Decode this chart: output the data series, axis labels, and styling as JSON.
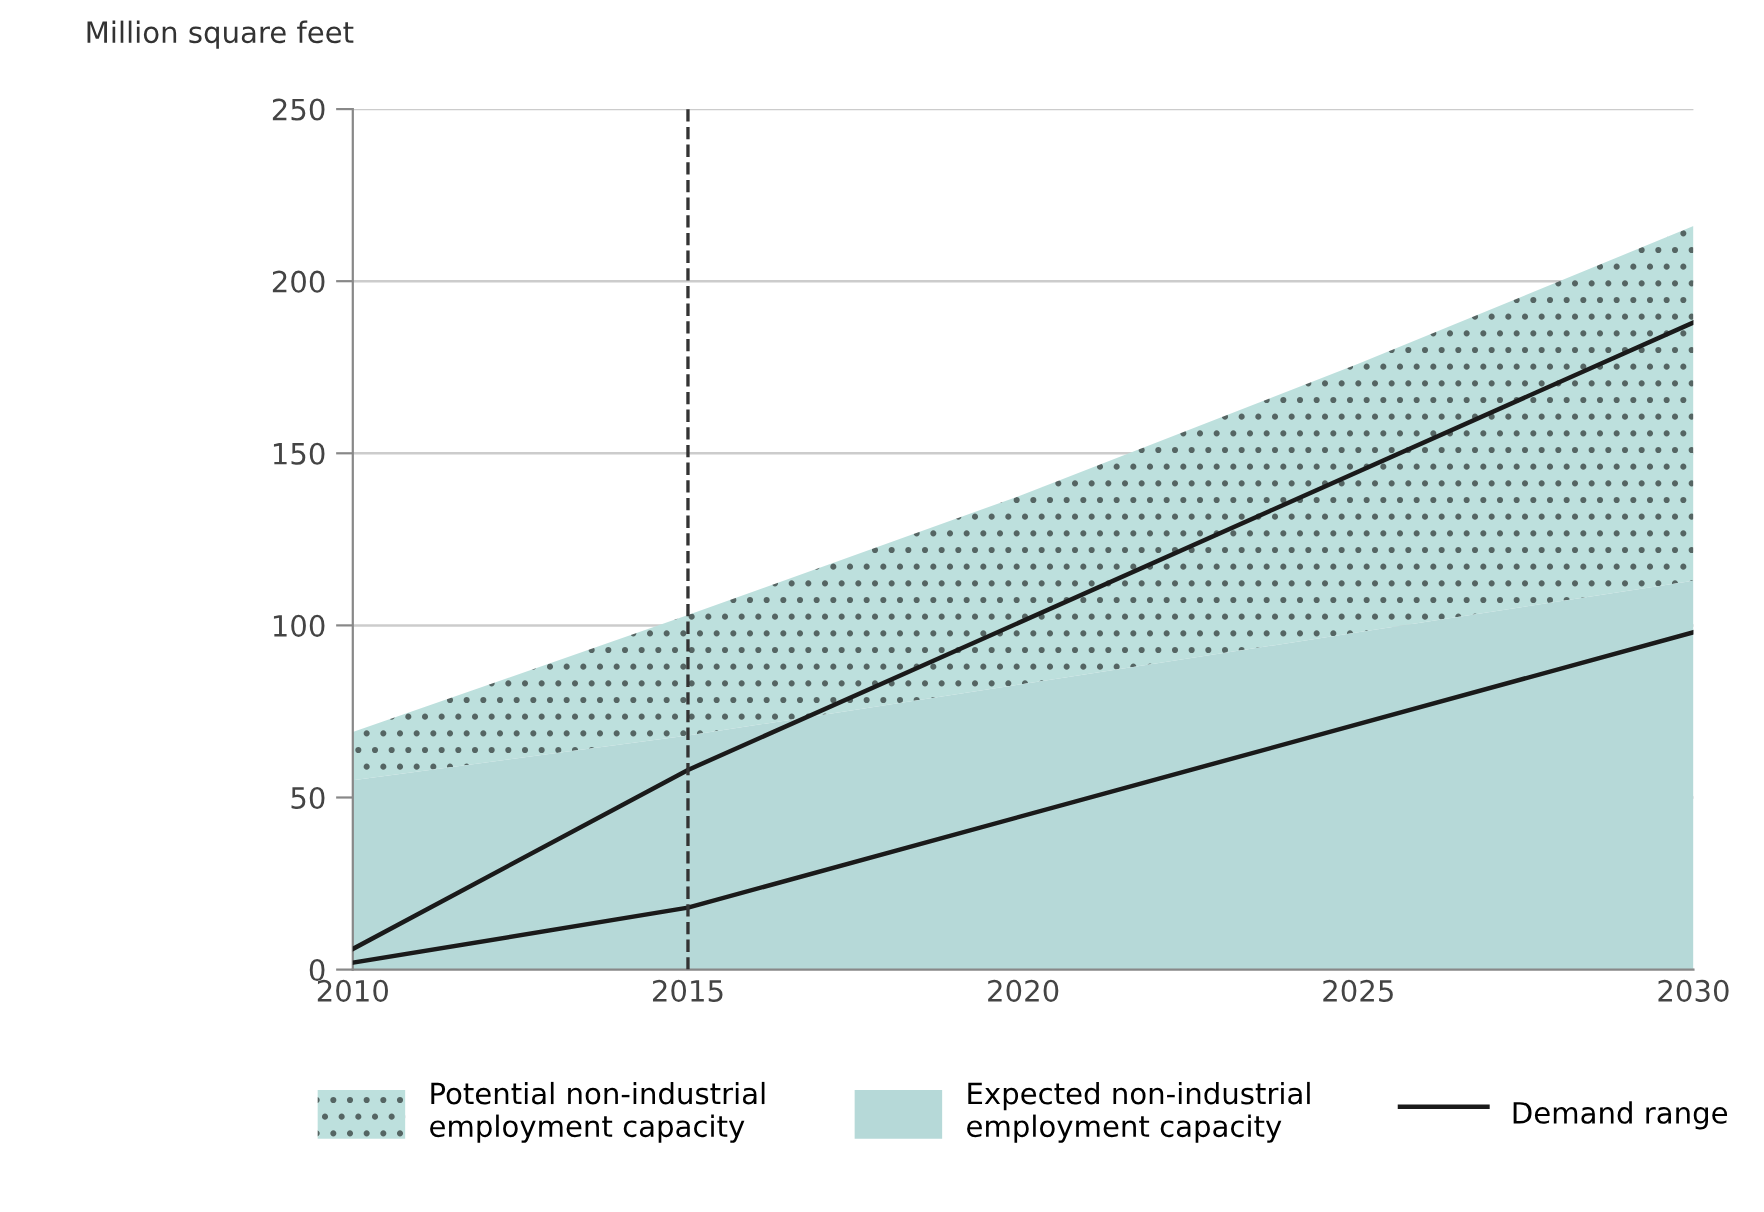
{
  "chart_data": {
    "type": "area",
    "ylabel": "Million square feet",
    "stacked": true,
    "x": [
      2010,
      2015,
      2020,
      2025,
      2030
    ],
    "series": [
      {
        "name": "Expected non-industrial employment capacity",
        "color": "#b6d9d8",
        "values": [
          55,
          68,
          83,
          98,
          113
        ]
      },
      {
        "name": "Potential non-industrial employment capacity",
        "color": "#bde0dd",
        "values": [
          14,
          35,
          55,
          78,
          103
        ]
      },
      {
        "name": "Demand range",
        "type": "line",
        "color": "#1a1a1a",
        "x": [
          2010,
          2015,
          2030
        ],
        "values": [
          6,
          58,
          188
        ]
      },
      {
        "type": "line",
        "color": "#1a1a1a",
        "x": [
          2010,
          2015,
          2030
        ],
        "values": [
          2,
          18,
          98
        ]
      }
    ],
    "xlim": [
      2010,
      2030
    ],
    "xticks": [
      2010,
      2015,
      2020,
      2025,
      2030
    ],
    "ylim": [
      0,
      250
    ],
    "yticks": [
      0,
      50,
      100,
      150,
      200,
      250
    ],
    "ref_lines": [
      {
        "axis": "x",
        "value": 2015,
        "line_style": "dashed",
        "color": "#333333"
      }
    ],
    "grid": "y",
    "legend": "bottom",
    "line_style": "solid",
    "marker": "none"
  }
}
